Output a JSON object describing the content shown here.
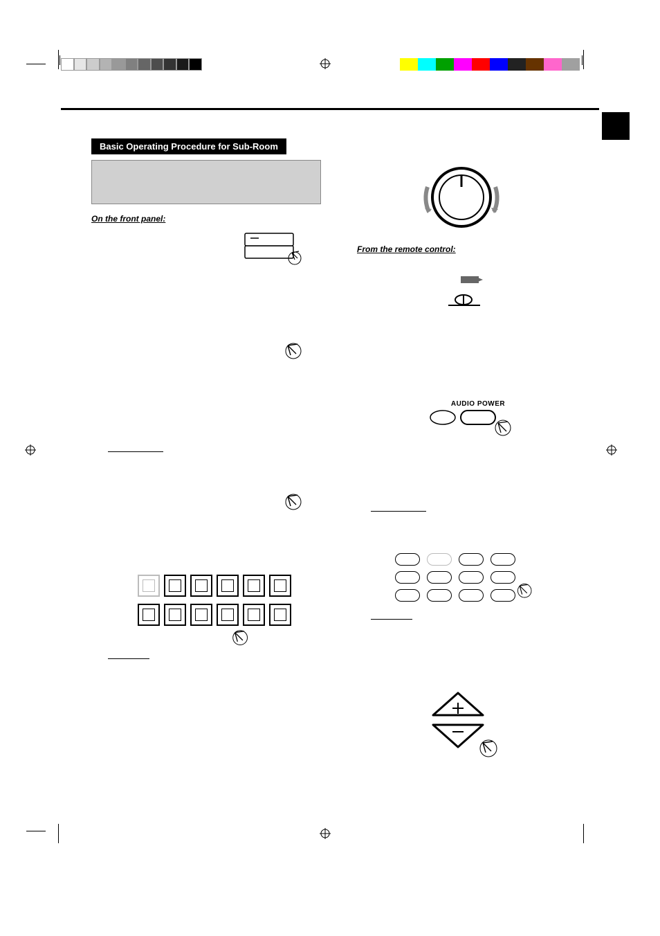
{
  "section_header": "Basic Operating Procedure for Sub-Room",
  "left": {
    "panel_label": "On the front panel:"
  },
  "right": {
    "remote_label": "From the remote control:",
    "audio_power_label": "AUDIO POWER"
  },
  "grey_scale": {
    "steps": 11
  },
  "color_scale": {
    "colors": [
      "#ffff00",
      "#00ffff",
      "#00a000",
      "#ff00ff",
      "#ff0000",
      "#0000ff",
      "#222222",
      "#663300",
      "#ff66cc",
      "#a0a0a0"
    ]
  },
  "buttons_row1": 6,
  "buttons_row2": 6,
  "remote_grid": {
    "rows": 3,
    "cols": 4
  },
  "volume_buttons": {
    "plus": "+",
    "minus": "–"
  }
}
